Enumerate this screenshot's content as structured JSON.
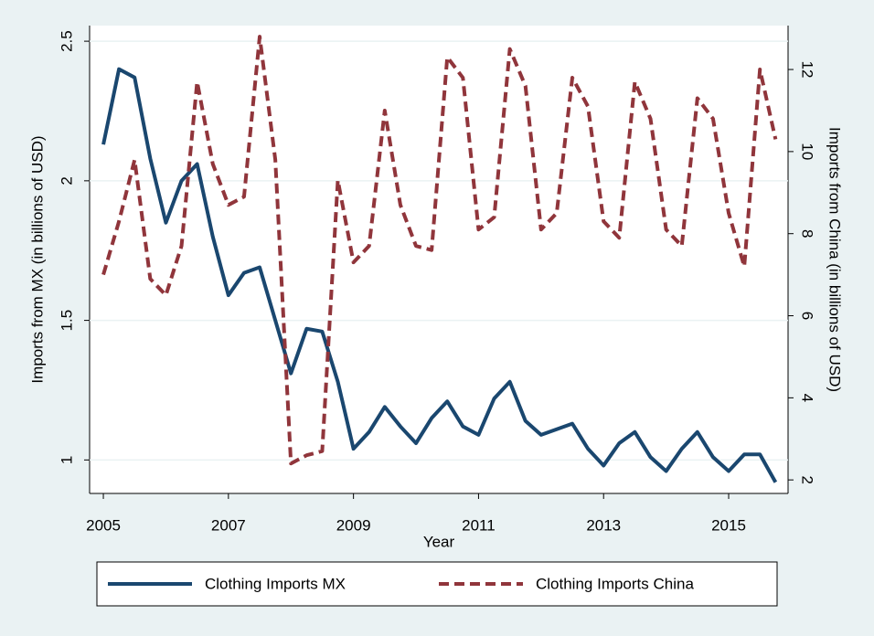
{
  "chart_data": {
    "type": "line",
    "x_label": "Year",
    "y_label": "Imports from MX (in billions of USD)",
    "y2_label": "Imports from China (in billions of USD)",
    "x": [
      2005,
      2005.25,
      2005.5,
      2005.75,
      2006,
      2006.25,
      2006.5,
      2006.75,
      2007,
      2007.25,
      2007.5,
      2007.75,
      2008,
      2008.25,
      2008.5,
      2008.75,
      2009,
      2009.25,
      2009.5,
      2009.75,
      2010,
      2010.25,
      2010.5,
      2010.75,
      2011,
      2011.25,
      2011.5,
      2011.75,
      2012,
      2012.25,
      2012.5,
      2012.75,
      2013,
      2013.25,
      2013.5,
      2013.75,
      2014,
      2014.25,
      2014.5,
      2014.75,
      2015,
      2015.25,
      2015.5,
      2015.75
    ],
    "series": [
      {
        "name": "Clothing Imports MX",
        "color": "#1a476f",
        "dash": "solid",
        "axis": "y",
        "values": [
          2.13,
          2.4,
          2.37,
          2.08,
          1.85,
          2.0,
          2.06,
          1.8,
          1.59,
          1.67,
          1.69,
          1.5,
          1.31,
          1.47,
          1.46,
          1.28,
          1.04,
          1.1,
          1.19,
          1.12,
          1.06,
          1.15,
          1.21,
          1.12,
          1.09,
          1.22,
          1.28,
          1.14,
          1.09,
          1.11,
          1.13,
          1.04,
          0.98,
          1.06,
          1.1,
          1.01,
          0.96,
          1.04,
          1.1,
          1.01,
          0.96,
          1.02,
          1.02,
          0.92
        ]
      },
      {
        "name": "Clothing Imports China",
        "color": "#90353b",
        "dash": "dashed",
        "axis": "y2",
        "values": [
          7.0,
          8.3,
          9.8,
          6.9,
          6.5,
          7.7,
          11.7,
          9.7,
          8.7,
          8.9,
          12.8,
          9.8,
          2.4,
          2.6,
          2.7,
          9.3,
          7.3,
          7.7,
          11.0,
          8.7,
          7.7,
          7.6,
          12.3,
          11.8,
          8.1,
          8.4,
          12.5,
          11.6,
          8.1,
          8.5,
          11.8,
          11.1,
          8.3,
          7.9,
          11.7,
          10.8,
          8.1,
          7.7,
          11.3,
          10.8,
          8.5,
          7.2,
          12.0,
          10.3
        ]
      }
    ],
    "xlim": [
      2004.78,
      2015.95
    ],
    "xticks": [
      2005,
      2007,
      2009,
      2011,
      2013,
      2015
    ],
    "ylim": [
      0.88,
      2.556
    ],
    "yticks": [
      1,
      1.5,
      2,
      2.5
    ],
    "y2lim": [
      1.67,
      13.07
    ],
    "y2ticks": [
      2,
      4,
      6,
      8,
      10,
      12
    ],
    "grid": true,
    "legend": "bottom"
  }
}
